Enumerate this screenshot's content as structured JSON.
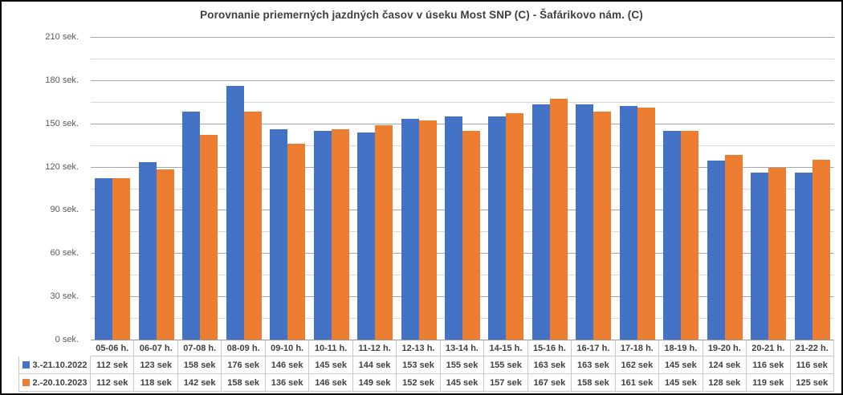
{
  "window": {
    "background": "#ffffff",
    "border_color": "#000000"
  },
  "colors": {
    "series_blue": "#4472C4",
    "series_orange": "#ED7D31",
    "gridline_major": "#A6A6A6",
    "gridline_minor": "#D9D9D9",
    "axis_text": "#595959",
    "table_text": "#404040",
    "table_border": "#C9C9C9",
    "title_text": "#3F3F3F"
  },
  "chart_data": {
    "type": "bar",
    "title": "Porovnanie priemerných jazdných časov v úseku Most SNP (C) - Šafárikovo nám. (C)",
    "xlabel": "",
    "ylabel": "",
    "categories": [
      "05-06 h.",
      "06-07 h.",
      "07-08 h.",
      "08-09 h.",
      "09-10 h.",
      "10-11 h.",
      "11-12 h.",
      "12-13 h.",
      "13-14 h.",
      "14-15 h.",
      "15-16 h.",
      "16-17 h.",
      "17-18 h.",
      "18-19 h.",
      "19-20 h.",
      "20-21 h.",
      "21-22 h."
    ],
    "series": [
      {
        "name": "3.-21.10.2022",
        "color": "#4472C4",
        "values": [
          112,
          123,
          158,
          176,
          146,
          145,
          144,
          153,
          155,
          155,
          163,
          163,
          162,
          145,
          124,
          116,
          116
        ]
      },
      {
        "name": "2.-20.10.2023",
        "color": "#ED7D31",
        "values": [
          112,
          118,
          142,
          158,
          136,
          146,
          149,
          152,
          145,
          157,
          167,
          158,
          161,
          145,
          128,
          119,
          125
        ]
      }
    ],
    "y_axis": {
      "min": 0,
      "max": 210,
      "major_step": 30,
      "minor_step": 15,
      "tick_suffix": " sek.",
      "tick_labels": [
        "0 sek.",
        "30 sek.",
        "60 sek.",
        "90 sek.",
        "120 sek.",
        "150 sek.",
        "180 sek.",
        "210 sek."
      ]
    },
    "value_suffix": " sek",
    "grid": true,
    "legend_position": "data-table-left"
  }
}
